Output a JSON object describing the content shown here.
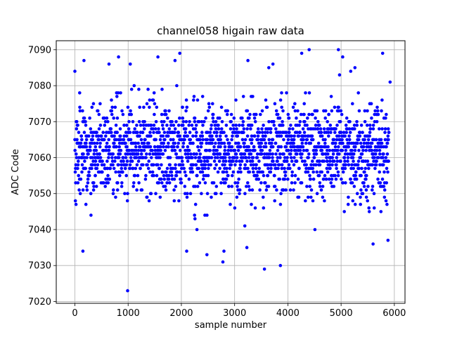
{
  "chart_data": {
    "type": "scatter",
    "title": "channel058 higain raw data",
    "xlabel": "sample number",
    "ylabel": "ADC Code",
    "xlim": [
      -350,
      6200
    ],
    "ylim": [
      7019.5,
      7092.5
    ],
    "xticks": [
      0,
      1000,
      2000,
      3000,
      4000,
      5000,
      6000
    ],
    "yticks": [
      7020,
      7030,
      7040,
      7050,
      7060,
      7070,
      7080,
      7090
    ],
    "grid": true,
    "marker_color": "#0000ff",
    "series": [
      {
        "n_points": 5900,
        "center": 7062,
        "spread": 6.5,
        "band_low": 7050,
        "band_high": 7074,
        "outliers": [
          [
            0,
            7084
          ],
          [
            150,
            7034
          ],
          [
            170,
            7087
          ],
          [
            640,
            7086
          ],
          [
            820,
            7088
          ],
          [
            990,
            7023
          ],
          [
            1040,
            7086
          ],
          [
            1560,
            7088
          ],
          [
            1880,
            7087
          ],
          [
            1970,
            7089
          ],
          [
            2100,
            7034
          ],
          [
            2480,
            7033
          ],
          [
            2780,
            7031
          ],
          [
            2800,
            7034
          ],
          [
            3230,
            7035
          ],
          [
            3250,
            7087
          ],
          [
            3560,
            7029
          ],
          [
            3720,
            7086
          ],
          [
            3860,
            7030
          ],
          [
            4260,
            7089
          ],
          [
            4400,
            7090
          ],
          [
            4950,
            7090
          ],
          [
            5030,
            7088
          ],
          [
            5260,
            7085
          ],
          [
            5600,
            7036
          ],
          [
            5780,
            7089
          ],
          [
            5880,
            7037
          ],
          [
            5920,
            7081
          ]
        ]
      }
    ]
  }
}
